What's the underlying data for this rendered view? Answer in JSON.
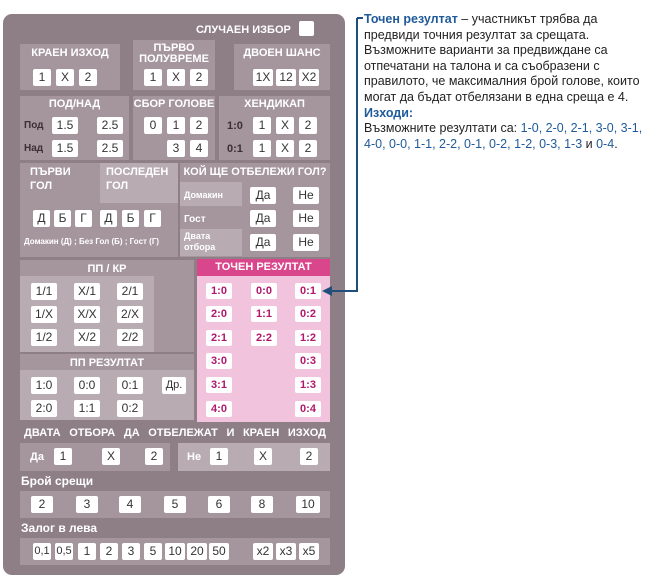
{
  "ticket": {
    "random_choice": "СЛУЧАЕН ИЗБОР",
    "final_outcome": {
      "title": "КРАЕН ИЗХОД",
      "options": [
        "1",
        "X",
        "2"
      ]
    },
    "first_half": {
      "title_line1": "ПЪРВО",
      "title_line2": "ПОЛУВРЕМЕ",
      "options": [
        "1",
        "X",
        "2"
      ]
    },
    "double_chance": {
      "title": "ДВОЕН ШАНС",
      "options": [
        "1X",
        "12",
        "X2"
      ]
    },
    "under_over": {
      "title": "ПОД/НАД",
      "rows": [
        {
          "label": "Под",
          "values": [
            "1.5",
            "2.5"
          ]
        },
        {
          "label": "Над",
          "values": [
            "1.5",
            "2.5"
          ]
        }
      ]
    },
    "goal_sum": {
      "title": "СБОР ГОЛОВЕ",
      "row1": [
        "0",
        "1",
        "2"
      ],
      "row2": [
        "3",
        "4"
      ]
    },
    "handicap": {
      "title": "ХЕНДИКАП",
      "rows": [
        {
          "label": "1:0",
          "values": [
            "1",
            "X",
            "2"
          ]
        },
        {
          "label": "0:1",
          "values": [
            "1",
            "X",
            "2"
          ]
        }
      ]
    },
    "first_goal": {
      "title_line1": "ПЪРВИ",
      "title_line2": "ГОЛ"
    },
    "last_goal": {
      "title_line1": "ПОСЛЕДЕН",
      "title_line2": "ГОЛ"
    },
    "goal_letters": [
      "Д",
      "Б",
      "Г",
      "Д",
      "Б",
      "Г"
    ],
    "goal_legend": "Домакин (Д) ; Без Гол (Б) ; Гост (Г)",
    "who_scores": {
      "title": "КОЙ ЩЕ ОТБЕЛЕЖИ ГОЛ?",
      "rows": [
        {
          "label": "Домакин",
          "yes": "Да",
          "no": "Не"
        },
        {
          "label": "Гост",
          "yes": "Да",
          "no": "Не"
        },
        {
          "label_line1": "Двата",
          "label_line2": "отбора",
          "yes": "Да",
          "no": "Не"
        }
      ]
    },
    "ht_ft": {
      "title": "ПП / КР",
      "rows": [
        [
          "1/1",
          "X/1",
          "2/1"
        ],
        [
          "1/X",
          "X/X",
          "2/X"
        ],
        [
          "1/2",
          "X/2",
          "2/2"
        ]
      ]
    },
    "ht_result": {
      "title": "ПП РЕЗУЛТАТ",
      "row1": [
        "1:0",
        "0:0",
        "0:1"
      ],
      "other": "Др.",
      "row2": [
        "2:0",
        "1:1",
        "0:2"
      ]
    },
    "exact_result": {
      "title": "ТОЧЕН РЕЗУЛТАТ",
      "rows": [
        [
          "1:0",
          "0:0",
          "0:1"
        ],
        [
          "2:0",
          "1:1",
          "0:2"
        ],
        [
          "2:1",
          "2:2",
          "1:2"
        ],
        [
          "3:0",
          "",
          "0:3"
        ],
        [
          "3:1",
          "",
          "1:3"
        ],
        [
          "4:0",
          "",
          "0:4"
        ]
      ]
    },
    "both_score_final": {
      "title_words": [
        "ДВАТА",
        "ОТБОРА",
        "ДА",
        "ОТБЕЛЕЖАТ",
        "И",
        "КРАЕН",
        "ИЗХОД"
      ],
      "yes": "Да",
      "no": "Не",
      "options": [
        "1",
        "X",
        "2"
      ]
    },
    "match_count": {
      "title": "Брой срещи",
      "options": [
        "2",
        "3",
        "4",
        "5",
        "6",
        "8",
        "10"
      ]
    },
    "stake": {
      "title": "Залог в лева",
      "options": [
        "0,1",
        "0,5",
        "1",
        "2",
        "3",
        "5",
        "10",
        "20",
        "50"
      ],
      "multipliers": [
        "x2",
        "x3",
        "x5"
      ]
    }
  },
  "explanation": {
    "term": "Точен резултат",
    "description": " – участникът трябва да предвиди точния резултат за срещата. Възможните варианти за предвиждане са отпечатани на талона и са съобразени с правилото, че максималния брой голове, които могат да бъдат отбелязани в една среща е 4.",
    "outcomes_label": "Изходи:",
    "outcomes_intro": "Възможните резултати са: ",
    "outcomes_list": "1-0, 2-0, 2-1, 3-0, 3-1, 4-0, 0-0, 1-1, 2-2, 0-1, 0-2, 1-2, 0-3, 1-3",
    "outcomes_and": " и ",
    "outcomes_last": "0-4",
    "outcomes_end": "."
  },
  "colors": {
    "ticket": "#8e7e86",
    "accent_pink": "#d9468c",
    "pink_panel": "#f2c3dc",
    "link_blue": "#1f5a9a",
    "arrow": "#1f4f7a"
  }
}
